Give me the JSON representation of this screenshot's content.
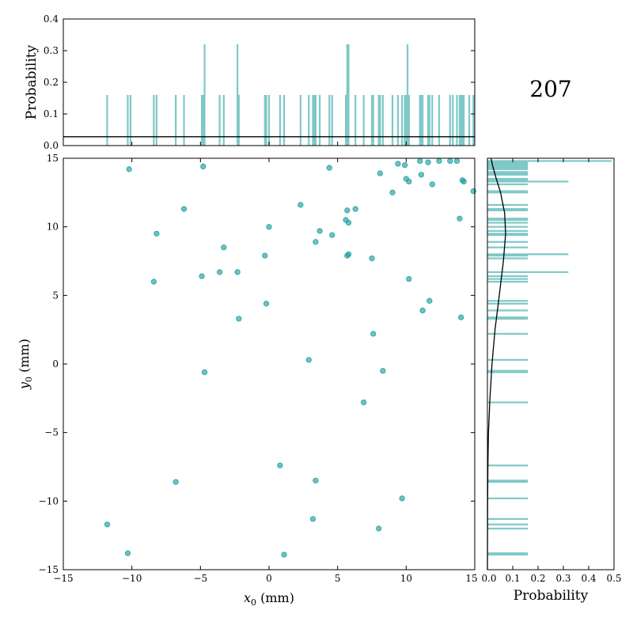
{
  "label": "207",
  "colors": {
    "points": "#20a0a0",
    "hist": "#80c8c8",
    "curve": "#000000"
  },
  "chart_data": [
    {
      "type": "scatter",
      "xlabel": "x0 (mm)",
      "ylabel": "y0 (mm)",
      "xlim": [
        -15,
        15
      ],
      "ylim": [
        -15,
        15
      ],
      "xticks": [
        "−15",
        "−10",
        "−5",
        "0",
        "5",
        "10",
        "15"
      ],
      "yticks": [
        "−15",
        "−10",
        "−5",
        "0",
        "5",
        "10",
        "15"
      ],
      "points": [
        [
          -10.2,
          14.2
        ],
        [
          -4.8,
          14.4
        ],
        [
          -6.2,
          11.3
        ],
        [
          -8.2,
          9.5
        ],
        [
          -8.4,
          6.0
        ],
        [
          -4.9,
          6.4
        ],
        [
          -3.6,
          6.7
        ],
        [
          -3.3,
          8.5
        ],
        [
          -2.3,
          6.7
        ],
        [
          -2.2,
          3.3
        ],
        [
          -0.3,
          7.9
        ],
        [
          0.0,
          10.0
        ],
        [
          -0.2,
          4.4
        ],
        [
          2.3,
          11.6
        ],
        [
          3.4,
          8.9
        ],
        [
          3.7,
          9.7
        ],
        [
          4.6,
          9.4
        ],
        [
          4.4,
          14.3
        ],
        [
          5.6,
          10.5
        ],
        [
          5.7,
          11.2
        ],
        [
          5.8,
          10.3
        ],
        [
          6.3,
          11.3
        ],
        [
          5.7,
          7.9
        ],
        [
          5.8,
          8.0
        ],
        [
          7.5,
          7.7
        ],
        [
          7.6,
          2.2
        ],
        [
          9.0,
          12.5
        ],
        [
          8.1,
          13.9
        ],
        [
          9.4,
          14.6
        ],
        [
          9.9,
          14.5
        ],
        [
          10.0,
          13.5
        ],
        [
          10.2,
          13.3
        ],
        [
          10.2,
          6.2
        ],
        [
          11.1,
          13.8
        ],
        [
          11.6,
          14.7
        ],
        [
          11.9,
          13.1
        ],
        [
          11.0,
          14.8
        ],
        [
          12.4,
          14.8
        ],
        [
          13.2,
          14.8
        ],
        [
          13.7,
          14.8
        ],
        [
          14.1,
          13.4
        ],
        [
          14.2,
          13.3
        ],
        [
          14.9,
          12.6
        ],
        [
          13.9,
          10.6
        ],
        [
          11.7,
          4.6
        ],
        [
          11.2,
          3.9
        ],
        [
          14.0,
          3.4
        ],
        [
          2.9,
          0.3
        ],
        [
          8.3,
          -0.5
        ],
        [
          6.9,
          -2.8
        ],
        [
          -4.7,
          -0.6
        ],
        [
          0.8,
          -7.4
        ],
        [
          -6.8,
          -8.6
        ],
        [
          3.4,
          -8.5
        ],
        [
          9.7,
          -9.8
        ],
        [
          -11.8,
          -11.7
        ],
        [
          3.2,
          -11.3
        ],
        [
          8.0,
          -12.0
        ],
        [
          -10.3,
          -13.8
        ],
        [
          1.1,
          -13.9
        ]
      ]
    },
    {
      "type": "bar",
      "ylabel": "Probability",
      "ylim": [
        0,
        0.4
      ],
      "yticks": [
        "0.0",
        "0.1",
        "0.2",
        "0.3",
        "0.4"
      ],
      "x": [
        -11.8,
        -10.3,
        -10.1,
        -8.4,
        -8.2,
        -6.8,
        -6.2,
        -4.9,
        -4.8,
        -4.7,
        -3.6,
        -3.3,
        -2.3,
        -2.2,
        -0.3,
        -0.2,
        0.0,
        0.8,
        1.1,
        2.3,
        2.9,
        3.2,
        3.3,
        3.4,
        3.7,
        4.4,
        4.6,
        5.6,
        5.7,
        5.8,
        6.3,
        6.9,
        7.5,
        7.6,
        8.0,
        8.1,
        8.3,
        9.0,
        9.4,
        9.7,
        9.9,
        10.0,
        10.1,
        10.2,
        11.0,
        11.1,
        11.2,
        11.6,
        11.7,
        11.9,
        12.4,
        13.2,
        13.4,
        13.7,
        13.9,
        14.0,
        14.1,
        14.2,
        14.6,
        14.9
      ],
      "values": [
        0.16,
        0.16,
        0.16,
        0.16,
        0.16,
        0.16,
        0.16,
        0.16,
        0.16,
        0.32,
        0.16,
        0.16,
        0.32,
        0.16,
        0.16,
        0.16,
        0.16,
        0.16,
        0.16,
        0.16,
        0.16,
        0.16,
        0.16,
        0.16,
        0.16,
        0.16,
        0.16,
        0.16,
        0.32,
        0.32,
        0.16,
        0.16,
        0.16,
        0.16,
        0.16,
        0.16,
        0.16,
        0.16,
        0.16,
        0.16,
        0.16,
        0.16,
        0.32,
        0.16,
        0.16,
        0.16,
        0.16,
        0.16,
        0.16,
        0.16,
        0.16,
        0.16,
        0.16,
        0.16,
        0.16,
        0.16,
        0.16,
        0.16,
        0.16,
        0.16
      ],
      "line": 0.028
    },
    {
      "type": "bar",
      "orientation": "horizontal",
      "xlabel": "Probability",
      "xlim": [
        0,
        0.5
      ],
      "xticks": [
        "0.0",
        "0.1",
        "0.2",
        "0.3",
        "0.4",
        "0.5"
      ],
      "y": [
        14.8,
        14.7,
        14.6,
        14.5,
        14.4,
        14.3,
        14.2,
        14.0,
        13.9,
        13.8,
        13.5,
        13.4,
        13.3,
        13.1,
        12.6,
        12.5,
        11.6,
        11.3,
        11.2,
        10.6,
        10.5,
        10.3,
        10.0,
        9.7,
        9.5,
        9.4,
        8.9,
        8.5,
        8.0,
        7.9,
        7.7,
        6.7,
        6.4,
        6.2,
        6.0,
        4.6,
        4.4,
        3.9,
        3.4,
        3.3,
        2.2,
        0.3,
        -0.5,
        -0.6,
        -2.8,
        -7.4,
        -8.5,
        -8.6,
        -9.8,
        -11.3,
        -11.7,
        -12.0,
        -13.8,
        -13.9
      ],
      "values": [
        0.49,
        0.16,
        0.16,
        0.16,
        0.16,
        0.16,
        0.16,
        0.16,
        0.16,
        0.16,
        0.16,
        0.16,
        0.32,
        0.16,
        0.16,
        0.16,
        0.16,
        0.16,
        0.16,
        0.16,
        0.16,
        0.16,
        0.16,
        0.16,
        0.16,
        0.16,
        0.16,
        0.16,
        0.32,
        0.16,
        0.16,
        0.32,
        0.16,
        0.16,
        0.16,
        0.16,
        0.16,
        0.16,
        0.16,
        0.16,
        0.16,
        0.16,
        0.16,
        0.16,
        0.16,
        0.16,
        0.16,
        0.16,
        0.16,
        0.16,
        0.16,
        0.16,
        0.16,
        0.16
      ],
      "curve_y": [
        -15,
        -10,
        -7.5,
        -5,
        -2.5,
        0,
        2.5,
        5,
        7.5,
        9.5,
        11,
        12.5,
        13.5,
        14.5,
        15
      ],
      "curve_x": [
        0.0,
        0.001,
        0.002,
        0.004,
        0.01,
        0.018,
        0.03,
        0.047,
        0.063,
        0.072,
        0.068,
        0.052,
        0.035,
        0.02,
        0.014
      ]
    }
  ]
}
